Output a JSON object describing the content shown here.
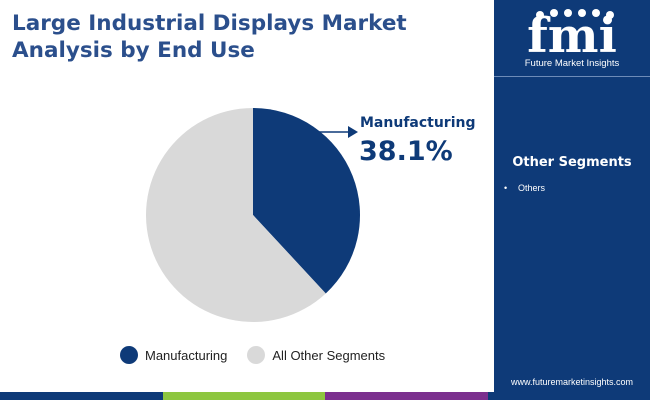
{
  "title": "Large Industrial Displays Market Analysis by End Use",
  "chart_data": {
    "type": "pie",
    "slices": [
      {
        "label": "Manufacturing",
        "value": 38.1,
        "color": "#0e3a78"
      },
      {
        "label": "All Other Segments",
        "value": 61.9,
        "color": "#d9d9d9"
      }
    ],
    "callout": {
      "label": "Manufacturing",
      "value": "38.1%"
    },
    "legend_position": "bottom"
  },
  "sidebar": {
    "brand_name": "Future Market Insights",
    "logo_text": "fmi",
    "heading": "Other Segments",
    "items": [
      "Others"
    ],
    "url": "www.futuremarketinsights.com"
  },
  "colors": {
    "title": "#2b4f8c",
    "accent": "#0e3a78",
    "bottom_bar": [
      "#0e3a78",
      "#8dc63f",
      "#7b2f8e",
      "#0e3a78"
    ]
  }
}
